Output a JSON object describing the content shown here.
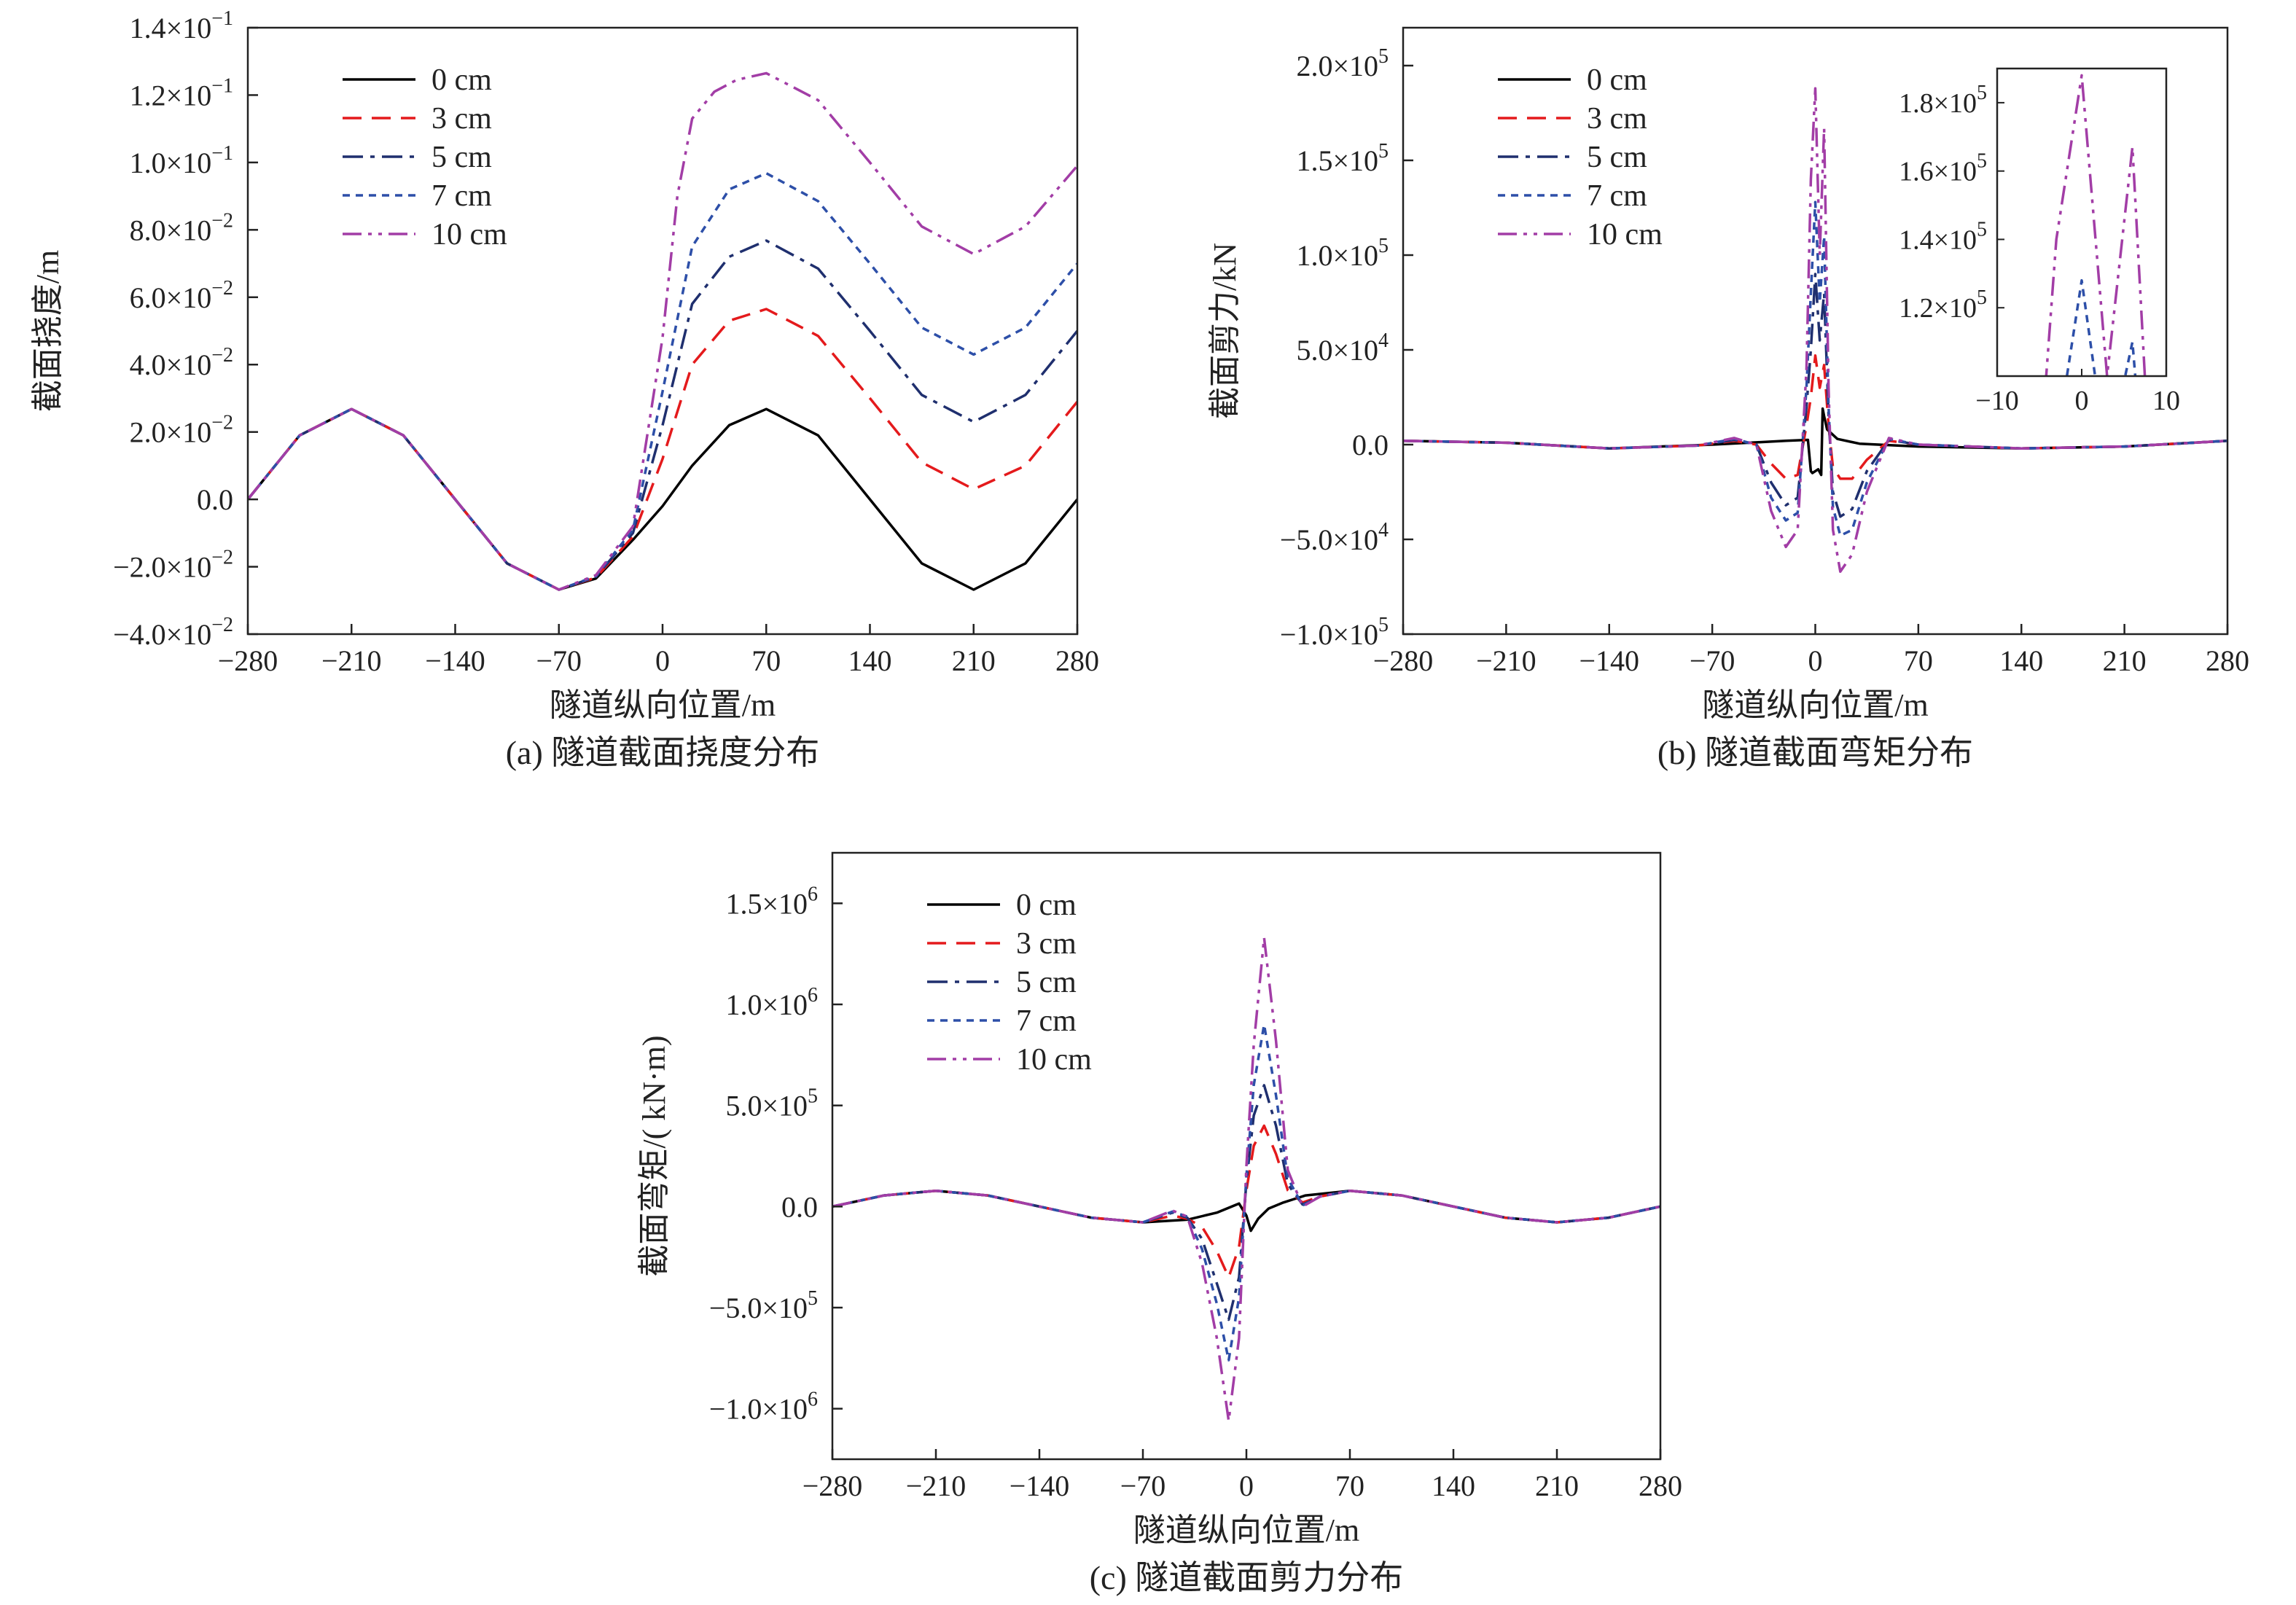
{
  "series_styles": [
    {
      "name": "0 cm",
      "color": "#000000",
      "dash": ""
    },
    {
      "name": "3 cm",
      "color": "#e41a1c",
      "dash": "26,14"
    },
    {
      "name": "5 cm",
      "color": "#1f2f6e",
      "dash": "28,10,6,10"
    },
    {
      "name": "7 cm",
      "color": "#2d4fa8",
      "dash": "10,8"
    },
    {
      "name": "10 cm",
      "color": "#a23da6",
      "dash": "26,9,5,9,5,9"
    }
  ],
  "chart_data": [
    {
      "type": "line",
      "panel": "a",
      "caption": "(a) 隧道截面挠度分布",
      "xlabel": "隧道纵向位置/m",
      "ylabel": "截面挠度/m",
      "xlim": [
        -280,
        280
      ],
      "ylim": [
        -0.04,
        0.14
      ],
      "xticks": [
        -280,
        -210,
        -140,
        -70,
        0,
        70,
        140,
        210,
        280
      ],
      "xtick_labels": [
        "−280",
        "−210",
        "−140",
        "−70",
        "0",
        "70",
        "140",
        "210",
        "280"
      ],
      "yticks": [
        -0.04,
        -0.02,
        0,
        0.02,
        0.04,
        0.06,
        0.08,
        0.1,
        0.12,
        0.14
      ],
      "ytick_labels": [
        {
          "mant": "−4.0×10",
          "exp": "−2"
        },
        {
          "mant": "−2.0×10",
          "exp": "−2"
        },
        {
          "mant": "0.0",
          "exp": ""
        },
        {
          "mant": "2.0×10",
          "exp": "−2"
        },
        {
          "mant": "4.0×10",
          "exp": "−2"
        },
        {
          "mant": "6.0×10",
          "exp": "−2"
        },
        {
          "mant": "8.0×10",
          "exp": "−2"
        },
        {
          "mant": "1.0×10",
          "exp": "−1"
        },
        {
          "mant": "1.2×10",
          "exp": "−1"
        },
        {
          "mant": "1.4×10",
          "exp": "−1"
        }
      ],
      "legend_position": "top-left",
      "series": [
        {
          "name": "0 cm",
          "x": [
            -280,
            -245,
            -210,
            -175,
            -140,
            -105,
            -70,
            -45,
            -20,
            0,
            20,
            45,
            70,
            105,
            140,
            175,
            210,
            245,
            280
          ],
          "y": [
            0,
            0.019,
            0.0268,
            0.019,
            0,
            -0.019,
            -0.0268,
            -0.0235,
            -0.012,
            -0.002,
            0.01,
            0.022,
            0.0268,
            0.019,
            0,
            -0.019,
            -0.0268,
            -0.019,
            0
          ]
        },
        {
          "name": "3 cm",
          "x": [
            -280,
            -245,
            -210,
            -175,
            -140,
            -105,
            -70,
            -45,
            -20,
            0,
            20,
            45,
            70,
            105,
            140,
            175,
            210,
            245,
            280
          ],
          "y": [
            0,
            0.019,
            0.0268,
            0.019,
            0,
            -0.019,
            -0.0268,
            -0.0232,
            -0.011,
            0.012,
            0.04,
            0.053,
            0.0565,
            0.0485,
            0.03,
            0.011,
            0.003,
            0.01,
            0.029
          ]
        },
        {
          "name": "5 cm",
          "x": [
            -280,
            -245,
            -210,
            -175,
            -140,
            -105,
            -70,
            -45,
            -20,
            0,
            20,
            45,
            70,
            105,
            140,
            175,
            210,
            245,
            280
          ],
          "y": [
            0,
            0.019,
            0.0268,
            0.019,
            0,
            -0.019,
            -0.0268,
            -0.023,
            -0.01,
            0.022,
            0.058,
            0.072,
            0.0768,
            0.0685,
            0.05,
            0.031,
            0.023,
            0.031,
            0.05
          ]
        },
        {
          "name": "7 cm",
          "x": [
            -280,
            -245,
            -210,
            -175,
            -140,
            -105,
            -70,
            -45,
            -20,
            0,
            20,
            45,
            70,
            105,
            140,
            175,
            210,
            245,
            280
          ],
          "y": [
            0,
            0.019,
            0.0268,
            0.019,
            0,
            -0.019,
            -0.0268,
            -0.0228,
            -0.009,
            0.032,
            0.075,
            0.092,
            0.0968,
            0.0885,
            0.07,
            0.051,
            0.043,
            0.051,
            0.07
          ]
        },
        {
          "name": "10 cm",
          "x": [
            -280,
            -245,
            -210,
            -175,
            -140,
            -105,
            -70,
            -45,
            -20,
            0,
            10,
            20,
            35,
            50,
            70,
            105,
            140,
            175,
            210,
            245,
            280
          ],
          "y": [
            0,
            0.019,
            0.0268,
            0.019,
            0,
            -0.019,
            -0.0268,
            -0.0225,
            -0.008,
            0.048,
            0.09,
            0.113,
            0.121,
            0.1245,
            0.1265,
            0.1185,
            0.1,
            0.081,
            0.0728,
            0.081,
            0.099
          ]
        }
      ]
    },
    {
      "type": "line",
      "panel": "b",
      "caption": "(b) 隧道截面弯矩分布",
      "xlabel": "隧道纵向位置/m",
      "ylabel": "截面剪力/kN",
      "xlim": [
        -280,
        280
      ],
      "ylim": [
        -100000,
        220000
      ],
      "xticks": [
        -280,
        -210,
        -140,
        -70,
        0,
        70,
        140,
        210,
        280
      ],
      "xtick_labels": [
        "−280",
        "−210",
        "−140",
        "−70",
        "0",
        "70",
        "140",
        "210",
        "280"
      ],
      "yticks": [
        -100000,
        -50000,
        0,
        50000,
        100000,
        150000,
        200000
      ],
      "ytick_labels": [
        {
          "mant": "−1.0×10",
          "exp": "5"
        },
        {
          "mant": "−5.0×10",
          "exp": "4"
        },
        {
          "mant": "0.0",
          "exp": ""
        },
        {
          "mant": "5.0×10",
          "exp": "4"
        },
        {
          "mant": "1.0×10",
          "exp": "5"
        },
        {
          "mant": "1.5×10",
          "exp": "5"
        },
        {
          "mant": "2.0×10",
          "exp": "5"
        }
      ],
      "legend_position": "top-left",
      "series": [
        {
          "name": "0 cm",
          "x": [
            -280,
            -210,
            -140,
            -70,
            -40,
            -20,
            -5,
            -3,
            -2,
            2,
            4,
            5,
            6,
            8,
            15,
            30,
            70,
            140,
            210,
            280
          ],
          "y": [
            2000,
            1000,
            -2000,
            0,
            1200,
            2000,
            2500,
            -14000,
            -15000,
            -13000,
            -16000,
            19000,
            15000,
            8000,
            3000,
            500,
            -1000,
            -2000,
            -1000,
            2000
          ]
        },
        {
          "name": "3 cm",
          "x": [
            -280,
            -210,
            -140,
            -80,
            -55,
            -40,
            -30,
            -20,
            -12,
            -6,
            -3,
            0,
            3,
            6,
            9,
            12,
            17,
            25,
            35,
            50,
            70,
            140,
            210,
            280
          ],
          "y": [
            2000,
            1000,
            -2000,
            -500,
            2000,
            0,
            -10000,
            -18000,
            -16000,
            10000,
            25000,
            47000,
            30000,
            42000,
            10000,
            -12000,
            -18000,
            -18000,
            -8000,
            2000,
            0,
            -2000,
            -1000,
            2000
          ]
        },
        {
          "name": "5 cm",
          "x": [
            -280,
            -210,
            -140,
            -80,
            -55,
            -40,
            -30,
            -20,
            -12,
            -6,
            -3,
            0,
            3,
            6,
            9,
            12,
            17,
            25,
            35,
            50,
            70,
            140,
            210,
            280
          ],
          "y": [
            2000,
            1000,
            -2000,
            -500,
            2500,
            0,
            -20000,
            -32000,
            -28000,
            20000,
            50000,
            90000,
            55000,
            80000,
            15000,
            -25000,
            -38000,
            -34000,
            -14000,
            2500,
            0,
            -2000,
            -1000,
            2000
          ]
        },
        {
          "name": "7 cm",
          "x": [
            -280,
            -210,
            -140,
            -80,
            -55,
            -40,
            -30,
            -20,
            -12,
            -6,
            -3,
            0,
            3,
            6,
            9,
            12,
            17,
            25,
            35,
            50,
            70,
            140,
            210,
            280
          ],
          "y": [
            2000,
            1000,
            -2000,
            -500,
            3000,
            0,
            -28000,
            -40000,
            -36000,
            30000,
            80000,
            128000,
            75000,
            110000,
            20000,
            -33000,
            -48000,
            -45000,
            -20000,
            3000,
            0,
            -2000,
            -1000,
            2000
          ]
        },
        {
          "name": "10 cm",
          "x": [
            -280,
            -210,
            -140,
            -80,
            -55,
            -40,
            -30,
            -20,
            -12,
            -6,
            -3,
            0,
            3,
            6,
            9,
            12,
            17,
            25,
            35,
            50,
            70,
            140,
            210,
            280
          ],
          "y": [
            2000,
            1000,
            -2000,
            -500,
            3500,
            0,
            -35000,
            -54000,
            -45000,
            40000,
            140000,
            188000,
            100000,
            167000,
            30000,
            -45000,
            -67000,
            -58000,
            -25000,
            3500,
            0,
            -2000,
            -1000,
            2000
          ]
        }
      ],
      "inset": {
        "xlim": [
          -10,
          10
        ],
        "ylim": [
          100000,
          190000
        ],
        "xticks": [
          -10,
          0,
          10
        ],
        "xtick_labels": [
          "−10",
          "0",
          "10"
        ],
        "yticks": [
          120000,
          140000,
          160000,
          180000
        ],
        "ytick_labels": [
          {
            "mant": "1.2×10",
            "exp": "5"
          },
          {
            "mant": "1.4×10",
            "exp": "5"
          },
          {
            "mant": "1.6×10",
            "exp": "5"
          },
          {
            "mant": "1.8×10",
            "exp": "5"
          }
        ]
      }
    },
    {
      "type": "line",
      "panel": "c",
      "caption": "(c) 隧道截面剪力分布",
      "xlabel": "隧道纵向位置/m",
      "ylabel": "截面弯矩/( kN·m)",
      "xlim": [
        -280,
        280
      ],
      "ylim": [
        -1250000,
        1750000
      ],
      "xticks": [
        -280,
        -210,
        -140,
        -70,
        0,
        70,
        140,
        210,
        280
      ],
      "xtick_labels": [
        "−280",
        "−210",
        "−140",
        "−70",
        "0",
        "70",
        "140",
        "210",
        "280"
      ],
      "yticks": [
        -1000000,
        -500000,
        0,
        500000,
        1000000,
        1500000
      ],
      "ytick_labels": [
        {
          "mant": "−1.0×10",
          "exp": "6"
        },
        {
          "mant": "−5.0×10",
          "exp": "5"
        },
        {
          "mant": "0.0",
          "exp": ""
        },
        {
          "mant": "5.0×10",
          "exp": "5"
        },
        {
          "mant": "1.0×10",
          "exp": "6"
        },
        {
          "mant": "1.5×10",
          "exp": "6"
        }
      ],
      "legend_position": "top-left",
      "series": [
        {
          "name": "0 cm",
          "x": [
            -280,
            -245,
            -210,
            -175,
            -140,
            -105,
            -70,
            -40,
            -20,
            -5,
            0,
            3,
            8,
            15,
            25,
            40,
            70,
            105,
            140,
            175,
            210,
            245,
            280
          ],
          "y": [
            0,
            55000,
            78000,
            55000,
            0,
            -55000,
            -78000,
            -65000,
            -30000,
            15000,
            -45000,
            -120000,
            -60000,
            -10000,
            20000,
            55000,
            78000,
            55000,
            0,
            -55000,
            -78000,
            -55000,
            0
          ]
        },
        {
          "name": "3 cm",
          "x": [
            -280,
            -245,
            -210,
            -175,
            -140,
            -105,
            -70,
            -50,
            -40,
            -30,
            -20,
            -12,
            -5,
            0,
            5,
            12,
            20,
            28,
            38,
            50,
            70,
            105,
            140,
            175,
            210,
            245,
            280
          ],
          "y": [
            0,
            55000,
            78000,
            55000,
            0,
            -55000,
            -78000,
            -45000,
            -60000,
            -100000,
            -220000,
            -350000,
            -200000,
            80000,
            300000,
            400000,
            260000,
            80000,
            20000,
            50000,
            78000,
            55000,
            0,
            -55000,
            -78000,
            -55000,
            0
          ]
        },
        {
          "name": "5 cm",
          "x": [
            -280,
            -245,
            -210,
            -175,
            -140,
            -105,
            -70,
            -50,
            -40,
            -30,
            -20,
            -12,
            -5,
            0,
            5,
            12,
            20,
            28,
            38,
            50,
            70,
            105,
            140,
            175,
            210,
            245,
            280
          ],
          "y": [
            0,
            55000,
            78000,
            55000,
            0,
            -55000,
            -78000,
            -30000,
            -55000,
            -160000,
            -380000,
            -560000,
            -350000,
            120000,
            450000,
            600000,
            400000,
            110000,
            10000,
            50000,
            78000,
            55000,
            0,
            -55000,
            -78000,
            -55000,
            0
          ]
        },
        {
          "name": "7 cm",
          "x": [
            -280,
            -245,
            -210,
            -175,
            -140,
            -105,
            -70,
            -50,
            -40,
            -30,
            -20,
            -12,
            -5,
            0,
            5,
            12,
            20,
            28,
            38,
            50,
            70,
            105,
            140,
            175,
            210,
            245,
            280
          ],
          "y": [
            0,
            55000,
            78000,
            55000,
            0,
            -55000,
            -78000,
            -25000,
            -50000,
            -210000,
            -480000,
            -760000,
            -450000,
            150000,
            600000,
            900000,
            550000,
            140000,
            5000,
            50000,
            78000,
            55000,
            0,
            -55000,
            -78000,
            -55000,
            0
          ]
        },
        {
          "name": "10 cm",
          "x": [
            -280,
            -245,
            -210,
            -175,
            -140,
            -105,
            -70,
            -50,
            -40,
            -30,
            -20,
            -12,
            -5,
            0,
            5,
            12,
            20,
            28,
            38,
            50,
            70,
            105,
            140,
            175,
            210,
            245,
            280
          ],
          "y": [
            0,
            55000,
            78000,
            55000,
            0,
            -55000,
            -78000,
            -20000,
            -50000,
            -280000,
            -650000,
            -1060000,
            -650000,
            200000,
            800000,
            1330000,
            820000,
            180000,
            0,
            50000,
            78000,
            55000,
            0,
            -55000,
            -78000,
            -55000,
            0
          ]
        }
      ]
    }
  ]
}
